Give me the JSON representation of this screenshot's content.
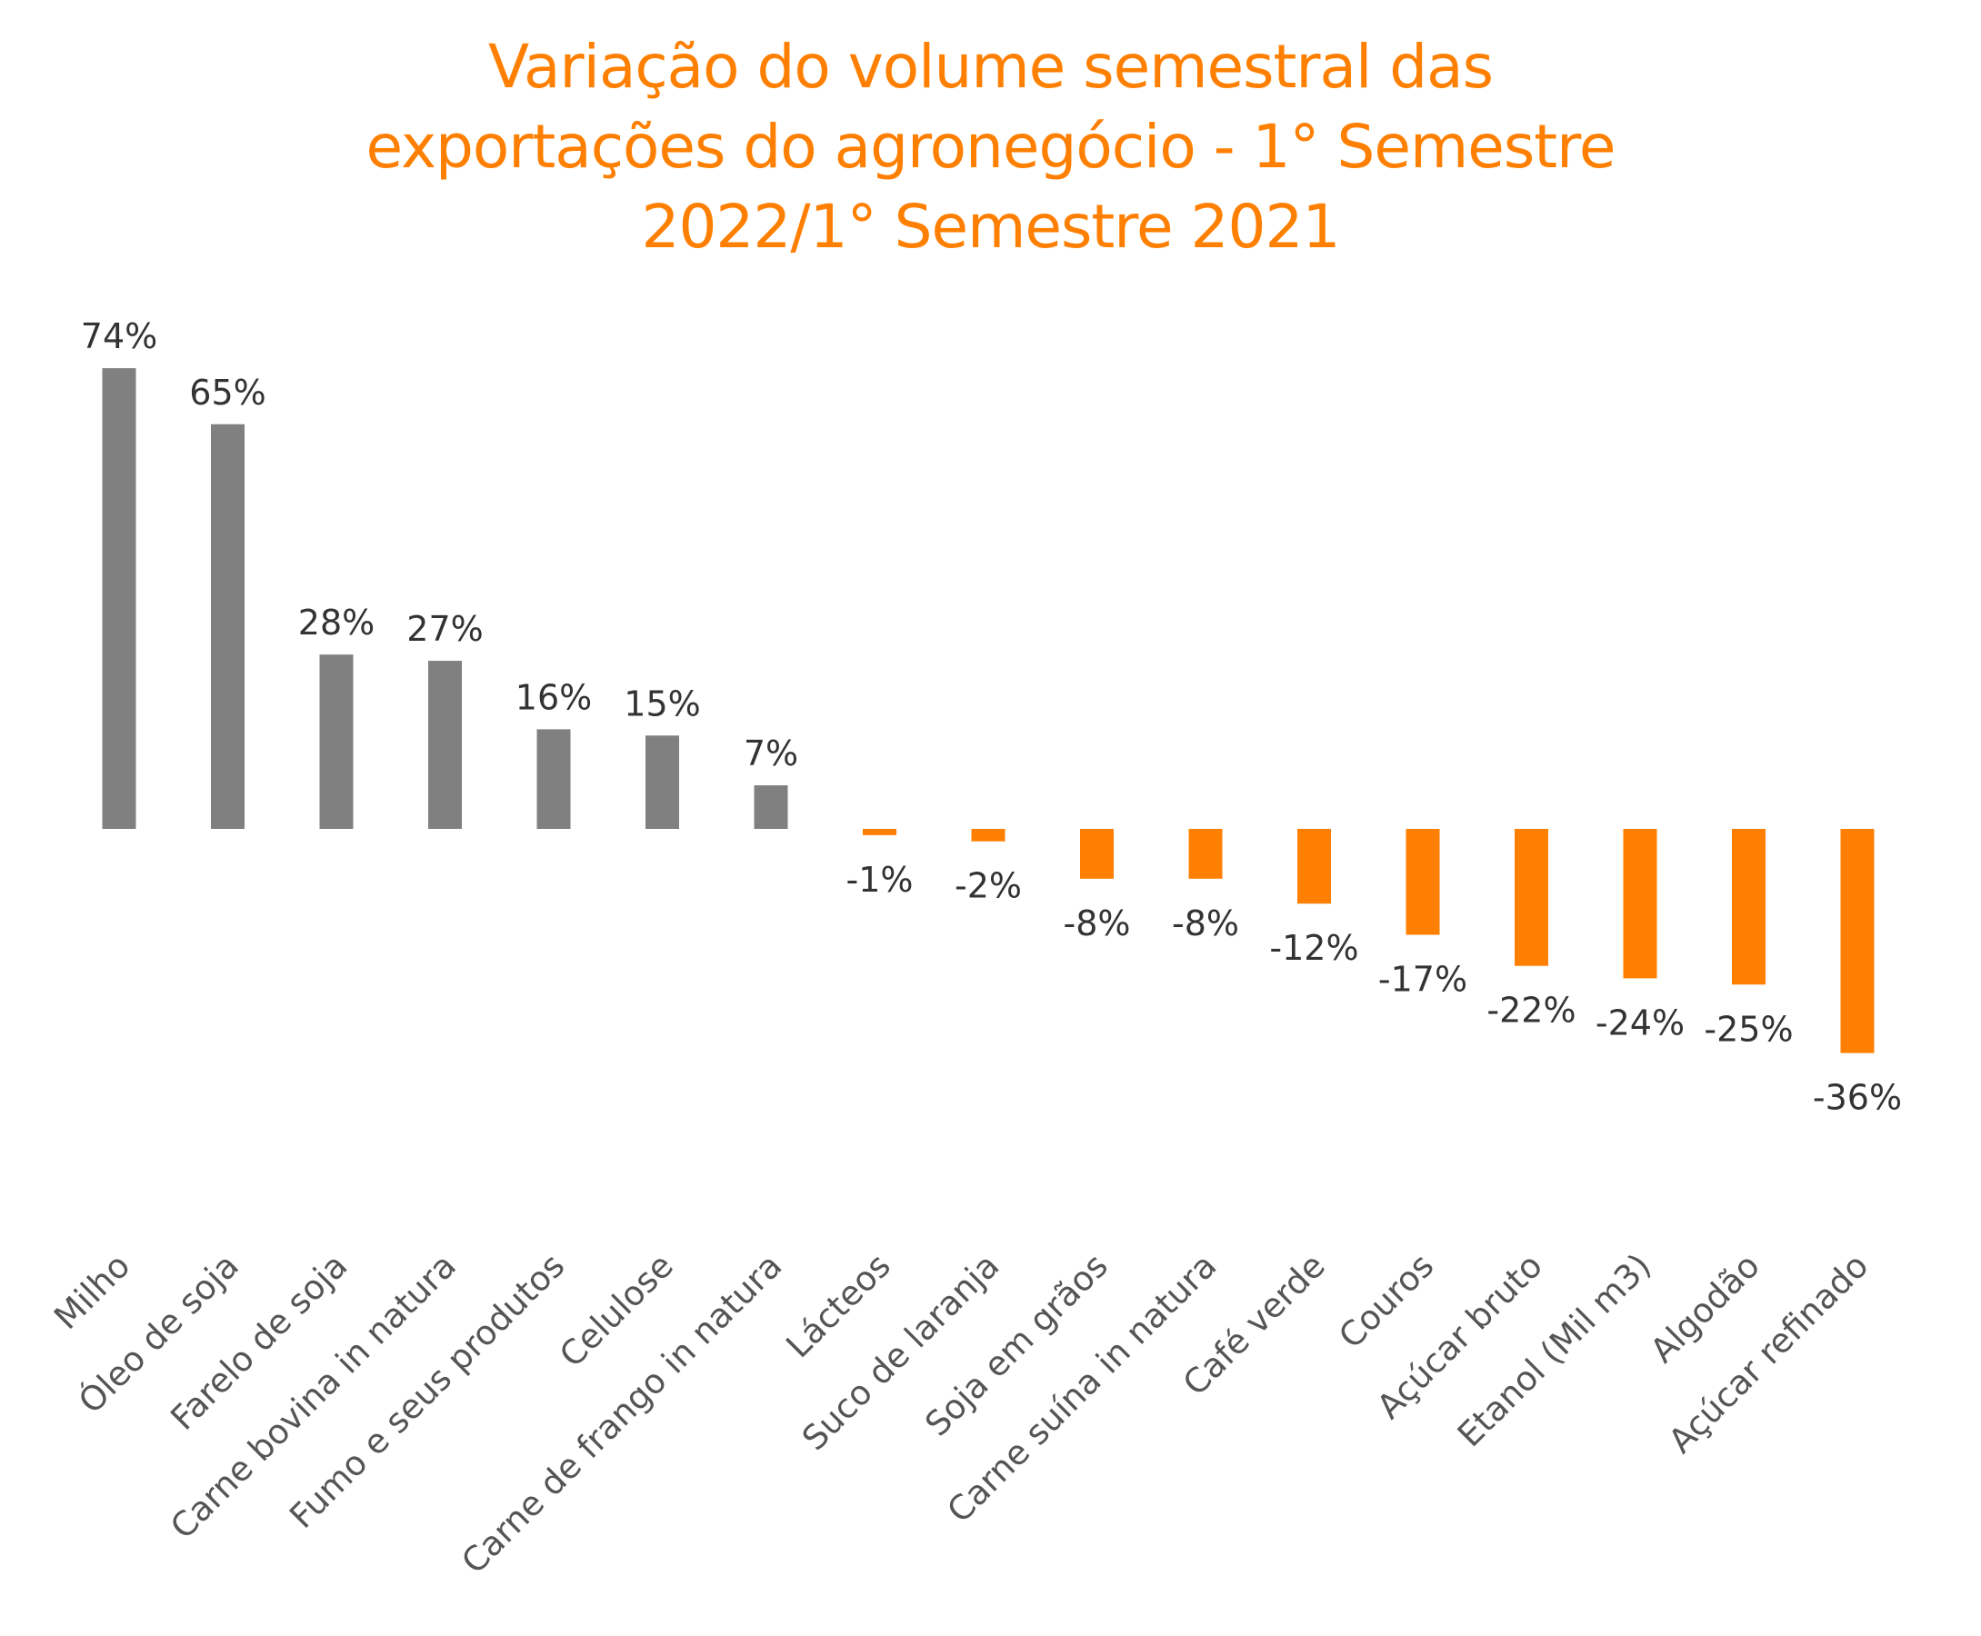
{
  "chart_data": {
    "type": "bar",
    "title_lines": [
      "Variação do volume semestral das",
      "exportações do agronegócio -  1° Semestre",
      "2022/1° Semestre 2021"
    ],
    "categories": [
      "Milho",
      "Óleo de soja",
      "Farelo de soja",
      "Carne bovina in natura",
      "Fumo e seus produtos",
      "Celulose",
      "Carne de frango in natura",
      "Lácteos",
      "Suco de laranja",
      "Soja em grãos",
      "Carne suína in natura",
      "Café verde",
      "Couros",
      "Açúcar bruto",
      "Etanol (Mil m3)",
      "Algodão",
      "Açúcar refinado"
    ],
    "values": [
      74,
      65,
      28,
      27,
      16,
      15,
      7,
      -1,
      -2,
      -8,
      -8,
      -12,
      -17,
      -22,
      -24,
      -25,
      -36
    ],
    "value_labels": [
      "74%",
      "65%",
      "28%",
      "27%",
      "16%",
      "15%",
      "7%",
      "-1%",
      "-2%",
      "-8%",
      "-8%",
      "-12%",
      "-17%",
      "-22%",
      "-24%",
      "-25%",
      "-36%"
    ],
    "positive_color": "#808080",
    "negative_color": "#FF7F00",
    "grid": false,
    "legend": "none",
    "xlabel": "",
    "ylabel": ""
  }
}
